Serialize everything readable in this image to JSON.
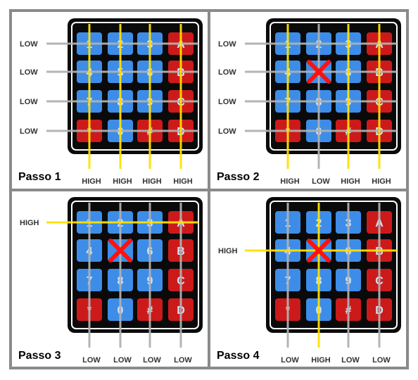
{
  "keypad": {
    "keys": [
      [
        "1",
        "2",
        "3",
        "A"
      ],
      [
        "4",
        "5",
        "6",
        "B"
      ],
      [
        "7",
        "8",
        "9",
        "C"
      ],
      [
        "*",
        "0",
        "#",
        "D"
      ]
    ],
    "key_colors": [
      [
        "blue",
        "blue",
        "blue",
        "red"
      ],
      [
        "blue",
        "blue",
        "blue",
        "red"
      ],
      [
        "blue",
        "blue",
        "blue",
        "red"
      ],
      [
        "red",
        "blue",
        "red",
        "red"
      ]
    ]
  },
  "colors": {
    "blue_key": "#3d8de8",
    "red_key": "#cc1a1a",
    "high_line": "#ffe000",
    "low_line": "#b0b0b0",
    "cross": "#ff1111",
    "frame": "#8a8a8a",
    "pad_border": "#0a0a0a"
  },
  "panels": [
    {
      "title": "Passo 1",
      "row_labels": [
        "LOW",
        "LOW",
        "LOW",
        "LOW"
      ],
      "row_states": [
        "low",
        "low",
        "low",
        "low"
      ],
      "col_labels": [
        "HIGH",
        "HIGH",
        "HIGH",
        "HIGH"
      ],
      "col_states": [
        "high",
        "high",
        "high",
        "high"
      ],
      "mark": null
    },
    {
      "title": "Passo 2",
      "row_labels": [
        "LOW",
        "LOW",
        "LOW",
        "LOW"
      ],
      "row_states": [
        "low",
        "low",
        "low",
        "low"
      ],
      "col_labels": [
        "HIGH",
        "LOW",
        "HIGH",
        "HIGH"
      ],
      "col_states": [
        "high",
        "low",
        "high",
        "high"
      ],
      "mark": {
        "row": 1,
        "col": 1
      }
    },
    {
      "title": "Passo 3",
      "row_labels": [
        "HIGH",
        "",
        "",
        ""
      ],
      "row_states": [
        "high",
        "none",
        "none",
        "none"
      ],
      "col_labels": [
        "LOW",
        "LOW",
        "LOW",
        "LOW"
      ],
      "col_states": [
        "low",
        "low",
        "low",
        "low"
      ],
      "mark": {
        "row": 1,
        "col": 1
      }
    },
    {
      "title": "Passo 4",
      "row_labels": [
        "",
        "HIGH",
        "",
        ""
      ],
      "row_states": [
        "none",
        "high",
        "none",
        "none"
      ],
      "col_labels": [
        "LOW",
        "HIGH",
        "LOW",
        "LOW"
      ],
      "col_states": [
        "low",
        "high",
        "low",
        "low"
      ],
      "mark": {
        "row": 1,
        "col": 1
      }
    }
  ]
}
